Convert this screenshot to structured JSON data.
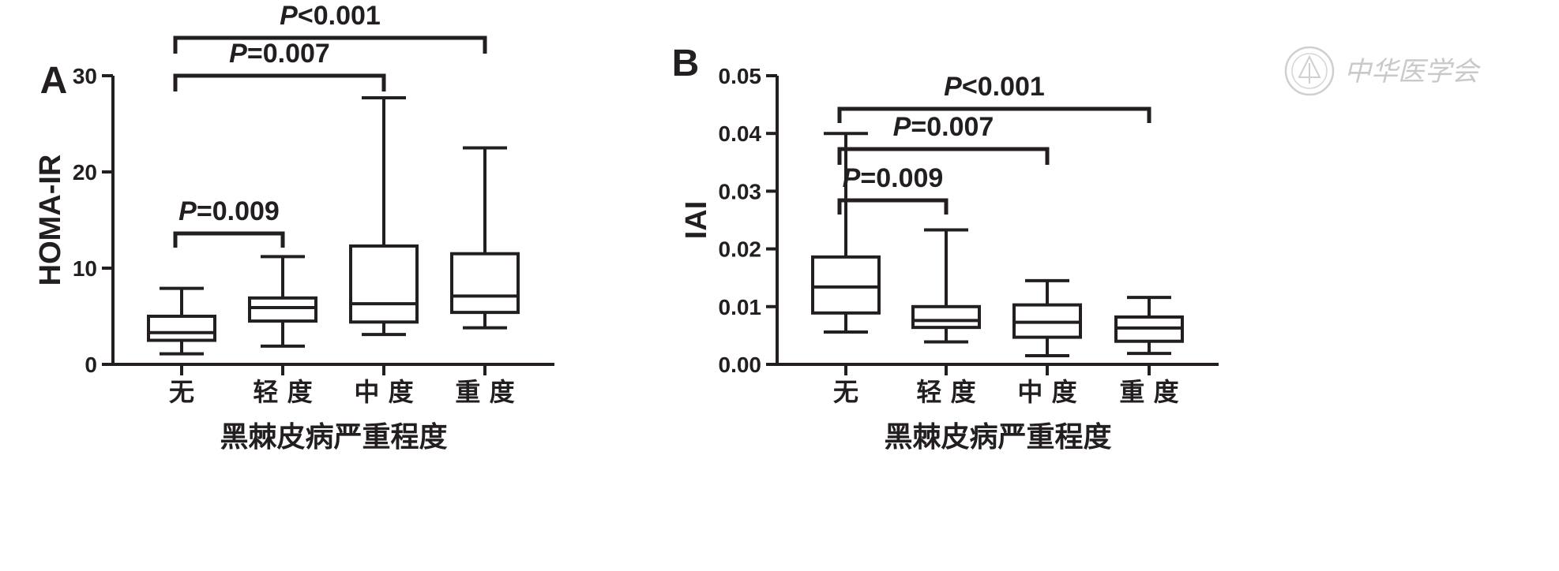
{
  "chart_data": [
    {
      "type": "boxplot",
      "panel": "A",
      "ylabel": "HOMA-IR",
      "xlabel": "黑棘皮病严重程度",
      "categories": [
        "无",
        "轻 度",
        "中 度",
        "重 度"
      ],
      "ylim": [
        0,
        30
      ],
      "yticks": [
        "0",
        "10",
        "20",
        "30"
      ],
      "boxes": [
        {
          "min": 1.1,
          "q1": 2.5,
          "median": 3.3,
          "q3": 5.0,
          "max": 7.9
        },
        {
          "min": 1.9,
          "q1": 4.5,
          "median": 5.9,
          "q3": 6.9,
          "max": 11.2
        },
        {
          "min": 3.1,
          "q1": 4.4,
          "median": 6.3,
          "q3": 12.3,
          "max": 27.7
        },
        {
          "min": 3.8,
          "q1": 5.4,
          "median": 7.1,
          "q3": 11.5,
          "max": 22.5
        }
      ],
      "comparisons": [
        {
          "from": 0,
          "to": 3,
          "label_italic": "P",
          "label_rest": "<0.001"
        },
        {
          "from": 0,
          "to": 2,
          "label_italic": "P",
          "label_rest": "=0.007"
        },
        {
          "from": 0,
          "to": 1,
          "label_italic": "P",
          "label_rest": "=0.009"
        }
      ]
    },
    {
      "type": "boxplot",
      "panel": "B",
      "ylabel": "IAI",
      "xlabel": "黑棘皮病严重程度",
      "categories": [
        "无",
        "轻 度",
        "中 度",
        "重 度"
      ],
      "ylim": [
        0,
        0.05
      ],
      "yticks": [
        "0.00",
        "0.01",
        "0.02",
        "0.03",
        "0.04",
        "0.05"
      ],
      "boxes": [
        {
          "min": 0.0056,
          "q1": 0.0089,
          "median": 0.0134,
          "q3": 0.0186,
          "max": 0.04
        },
        {
          "min": 0.0039,
          "q1": 0.0064,
          "median": 0.0076,
          "q3": 0.01,
          "max": 0.0233
        },
        {
          "min": 0.0015,
          "q1": 0.0047,
          "median": 0.0073,
          "q3": 0.0103,
          "max": 0.0145
        },
        {
          "min": 0.0019,
          "q1": 0.004,
          "median": 0.0063,
          "q3": 0.0082,
          "max": 0.0116
        }
      ],
      "comparisons": [
        {
          "from": 0,
          "to": 3,
          "label_italic": "P",
          "label_rest": "<0.001"
        },
        {
          "from": 0,
          "to": 2,
          "label_italic": "P",
          "label_rest": "=0.007"
        },
        {
          "from": 0,
          "to": 1,
          "label_italic": "P",
          "label_rest": "=0.009"
        }
      ]
    }
  ],
  "watermark": {
    "text": "中华医学会",
    "color": "#c9c9c9"
  },
  "colors": {
    "ink": "#231f20",
    "background": "#ffffff"
  }
}
